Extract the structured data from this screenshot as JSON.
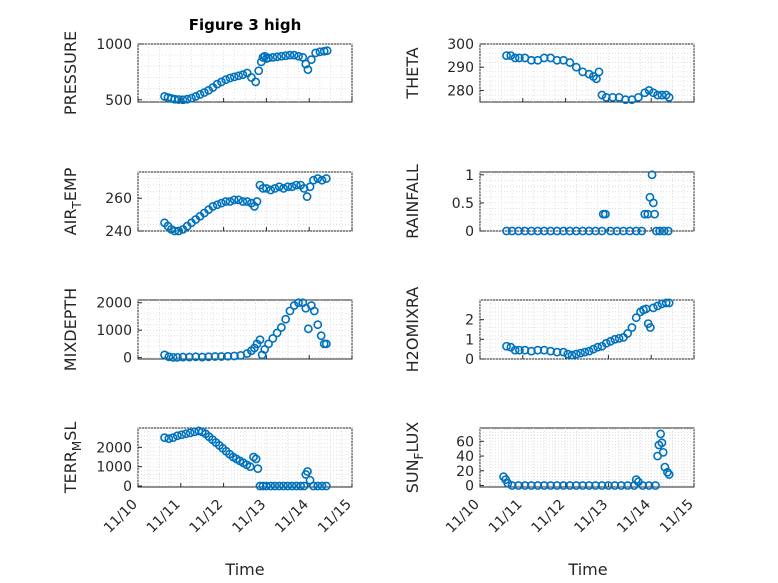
{
  "figure_title": "Figure 3 high",
  "marker_color": "#0072BD",
  "chart_data": [
    {
      "type": "scatter",
      "ylabel": "PRESSURE",
      "title": "Figure 3 high",
      "xlim": [
        0,
        5
      ],
      "ylim": [
        480,
        1000
      ],
      "yticks": [
        500,
        1000
      ],
      "ytick_labels": [
        "500",
        "1000"
      ],
      "grid": true,
      "x": [
        0.62,
        0.7,
        0.78,
        0.86,
        0.95,
        1.05,
        1.15,
        1.25,
        1.35,
        1.45,
        1.55,
        1.65,
        1.75,
        1.85,
        1.95,
        2.05,
        2.15,
        2.25,
        2.35,
        2.45,
        2.55,
        2.65,
        2.75,
        2.82,
        2.88,
        2.92,
        2.96,
        3.0,
        3.05,
        3.15,
        3.25,
        3.35,
        3.45,
        3.55,
        3.65,
        3.75,
        3.85,
        3.92,
        3.97,
        4.05,
        4.15,
        4.25,
        4.35,
        4.42
      ],
      "y": [
        530,
        520,
        512,
        505,
        502,
        500,
        505,
        515,
        530,
        548,
        565,
        585,
        610,
        640,
        660,
        680,
        695,
        705,
        715,
        725,
        740,
        700,
        660,
        760,
        840,
        880,
        890,
        870,
        875,
        880,
        885,
        890,
        895,
        900,
        900,
        890,
        880,
        820,
        770,
        860,
        920,
        930,
        935,
        940
      ]
    },
    {
      "type": "scatter",
      "ylabel": "THETA",
      "xlim": [
        0,
        5
      ],
      "ylim": [
        275,
        300
      ],
      "yticks": [
        280,
        290,
        300
      ],
      "ytick_labels": [
        "280",
        "290",
        "300"
      ],
      "grid": true,
      "x": [
        0.62,
        0.72,
        0.82,
        0.92,
        1.05,
        1.2,
        1.35,
        1.5,
        1.65,
        1.8,
        1.95,
        2.1,
        2.25,
        2.4,
        2.55,
        2.65,
        2.72,
        2.78,
        2.85,
        2.95,
        3.1,
        3.25,
        3.4,
        3.55,
        3.7,
        3.85,
        3.95,
        4.05,
        4.15,
        4.25,
        4.35,
        4.42
      ],
      "y": [
        295,
        295,
        294,
        294,
        294,
        293,
        293,
        294,
        294,
        293,
        293,
        292,
        290,
        288,
        287,
        286,
        285,
        288,
        278,
        277,
        277,
        277,
        276,
        276,
        277,
        279,
        280,
        279,
        278,
        278,
        278,
        277
      ]
    },
    {
      "type": "scatter",
      "ylabel": "AIR_TEMP",
      "xlim": [
        0,
        5
      ],
      "ylim": [
        240,
        276
      ],
      "yticks": [
        240,
        260
      ],
      "ytick_labels": [
        "240",
        "260"
      ],
      "grid": true,
      "x": [
        0.62,
        0.7,
        0.78,
        0.86,
        0.95,
        1.05,
        1.15,
        1.25,
        1.35,
        1.45,
        1.55,
        1.65,
        1.75,
        1.85,
        1.95,
        2.05,
        2.15,
        2.25,
        2.35,
        2.45,
        2.55,
        2.65,
        2.72,
        2.78,
        2.85,
        2.92,
        3.0,
        3.1,
        3.2,
        3.3,
        3.4,
        3.5,
        3.6,
        3.7,
        3.8,
        3.88,
        3.95,
        4.02,
        4.1,
        4.2,
        4.3,
        4.4
      ],
      "y": [
        245,
        243,
        241,
        240,
        240,
        241,
        243,
        245,
        247,
        249,
        251,
        253,
        255,
        256,
        257,
        258,
        258,
        259,
        259,
        258,
        258,
        257,
        255,
        258,
        268,
        266,
        266,
        265,
        266,
        267,
        266,
        267,
        267,
        268,
        268,
        266,
        261,
        267,
        271,
        272,
        271,
        272
      ]
    },
    {
      "type": "scatter",
      "ylabel": "RAINFALL",
      "xlim": [
        0,
        5
      ],
      "ylim": [
        0,
        1.05
      ],
      "yticks": [
        0,
        0.5,
        1
      ],
      "ytick_labels": [
        "0",
        "0.5",
        "1"
      ],
      "grid": true,
      "x": [
        0.62,
        0.75,
        0.9,
        1.05,
        1.2,
        1.35,
        1.5,
        1.65,
        1.8,
        1.95,
        2.1,
        2.25,
        2.4,
        2.55,
        2.7,
        2.85,
        2.88,
        2.93,
        3.05,
        3.2,
        3.35,
        3.5,
        3.65,
        3.78,
        3.85,
        3.92,
        3.97,
        4.02,
        4.05,
        4.08,
        4.12,
        4.2,
        4.3,
        4.4
      ],
      "y": [
        0,
        0,
        0,
        0,
        0,
        0,
        0,
        0,
        0,
        0,
        0,
        0,
        0,
        0,
        0,
        0,
        0.3,
        0.3,
        0,
        0,
        0,
        0,
        0,
        0,
        0.3,
        0.3,
        0.6,
        1.0,
        0.5,
        0.3,
        0,
        0,
        0,
        0
      ]
    },
    {
      "type": "scatter",
      "ylabel": "MIXDEPTH",
      "xlim": [
        0,
        5
      ],
      "ylim": [
        -50,
        2100
      ],
      "yticks": [
        0,
        1000,
        2000
      ],
      "ytick_labels": [
        "0",
        "1000",
        "2000"
      ],
      "grid": true,
      "x": [
        0.62,
        0.72,
        0.82,
        0.92,
        1.05,
        1.2,
        1.35,
        1.5,
        1.65,
        1.8,
        1.95,
        2.1,
        2.25,
        2.4,
        2.55,
        2.65,
        2.72,
        2.78,
        2.85,
        2.9,
        2.96,
        3.05,
        3.15,
        3.25,
        3.35,
        3.45,
        3.55,
        3.65,
        3.75,
        3.85,
        3.92,
        3.98,
        4.05,
        4.12,
        4.2,
        4.28,
        4.35,
        4.4
      ],
      "y": [
        100,
        30,
        10,
        10,
        20,
        20,
        30,
        20,
        30,
        40,
        40,
        50,
        60,
        80,
        150,
        250,
        350,
        500,
        650,
        100,
        300,
        500,
        700,
        900,
        1100,
        1400,
        1700,
        1900,
        2000,
        2000,
        1800,
        1050,
        1900,
        1700,
        1200,
        800,
        500,
        500
      ]
    },
    {
      "type": "scatter",
      "ylabel": "H2OMIXRA",
      "xlim": [
        0,
        5
      ],
      "ylim": [
        0,
        3
      ],
      "yticks": [
        0,
        1,
        2
      ],
      "ytick_labels": [
        "0",
        "1",
        "2"
      ],
      "grid": true,
      "x": [
        0.62,
        0.72,
        0.82,
        0.92,
        1.05,
        1.2,
        1.35,
        1.5,
        1.65,
        1.8,
        1.95,
        2.05,
        2.15,
        2.25,
        2.35,
        2.45,
        2.55,
        2.65,
        2.75,
        2.85,
        2.95,
        3.05,
        3.15,
        3.25,
        3.35,
        3.45,
        3.55,
        3.65,
        3.75,
        3.82,
        3.88,
        3.93,
        3.98,
        4.05,
        4.15,
        4.25,
        4.35,
        4.42
      ],
      "y": [
        0.65,
        0.6,
        0.45,
        0.45,
        0.45,
        0.4,
        0.45,
        0.45,
        0.4,
        0.35,
        0.35,
        0.25,
        0.2,
        0.25,
        0.3,
        0.35,
        0.4,
        0.5,
        0.6,
        0.65,
        0.8,
        0.9,
        1.0,
        1.05,
        1.1,
        1.3,
        1.6,
        2.1,
        2.4,
        2.5,
        2.55,
        1.8,
        1.6,
        2.6,
        2.7,
        2.8,
        2.85,
        2.85
      ]
    },
    {
      "type": "scatter",
      "ylabel": "TERR_MSL",
      "xlim": [
        0,
        5
      ],
      "ylim": [
        -50,
        3000
      ],
      "yticks": [
        0,
        1000,
        2000
      ],
      "ytick_labels": [
        "0",
        "1000",
        "2000"
      ],
      "grid": true,
      "x": [
        0.62,
        0.72,
        0.82,
        0.92,
        1.02,
        1.12,
        1.22,
        1.32,
        1.42,
        1.5,
        1.58,
        1.66,
        1.74,
        1.82,
        1.9,
        1.98,
        2.06,
        2.14,
        2.22,
        2.3,
        2.38,
        2.46,
        2.54,
        2.62,
        2.7,
        2.76,
        2.8,
        2.85,
        2.92,
        3.0,
        3.1,
        3.2,
        3.3,
        3.4,
        3.5,
        3.6,
        3.7,
        3.8,
        3.88,
        3.92,
        3.96,
        4.02,
        4.1,
        4.2,
        4.3,
        4.4
      ],
      "y": [
        2500,
        2450,
        2500,
        2600,
        2650,
        2700,
        2750,
        2800,
        2850,
        2800,
        2700,
        2550,
        2400,
        2250,
        2100,
        1950,
        1800,
        1650,
        1500,
        1400,
        1300,
        1200,
        1100,
        1000,
        1500,
        1400,
        900,
        0,
        0,
        0,
        0,
        0,
        0,
        0,
        0,
        0,
        0,
        0,
        0,
        600,
        750,
        300,
        0,
        0,
        0,
        0
      ]
    },
    {
      "type": "scatter",
      "ylabel": "SUN_FLUX",
      "xlim": [
        0,
        5
      ],
      "ylim": [
        -2,
        78
      ],
      "yticks": [
        0,
        20,
        40,
        60
      ],
      "ytick_labels": [
        "0",
        "20",
        "40",
        "60"
      ],
      "grid": true,
      "x": [
        0.55,
        0.6,
        0.65,
        0.75,
        0.9,
        1.05,
        1.2,
        1.35,
        1.5,
        1.65,
        1.8,
        1.95,
        2.1,
        2.25,
        2.4,
        2.55,
        2.7,
        2.85,
        3.0,
        3.15,
        3.3,
        3.45,
        3.6,
        3.65,
        3.7,
        3.8,
        3.95,
        4.1,
        4.15,
        4.18,
        4.22,
        4.25,
        4.28,
        4.32,
        4.38,
        4.42
      ],
      "y": [
        12,
        8,
        3,
        0,
        0,
        0,
        0,
        0,
        0,
        0,
        0,
        0,
        0,
        0,
        0,
        0,
        0,
        0,
        0,
        0,
        0,
        0,
        0,
        8,
        5,
        0,
        0,
        0,
        40,
        55,
        70,
        58,
        45,
        25,
        18,
        15
      ]
    }
  ],
  "x_axis": {
    "tick_labels": [
      "11/10",
      "11/11",
      "11/12",
      "11/13",
      "11/14",
      "11/15"
    ],
    "label": "Time"
  }
}
